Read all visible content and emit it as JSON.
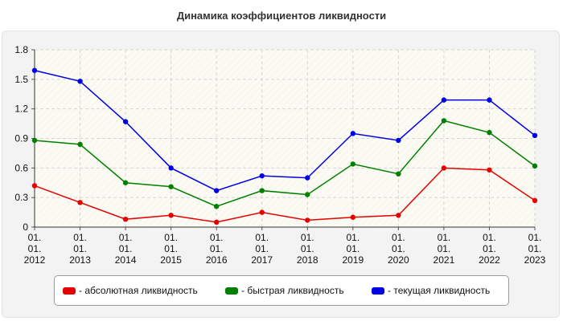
{
  "chart_data": {
    "type": "line",
    "title": "Динамика коэффициентов ликвидности",
    "xlabel": "",
    "ylabel": "",
    "categories": [
      "01.\n01.\n2012",
      "01.\n01.\n2013",
      "01.\n01.\n2014",
      "01.\n01.\n2015",
      "01.\n01.\n2016",
      "01.\n01.\n2017",
      "01.\n01.\n2018",
      "01.\n01.\n2019",
      "01.\n01.\n2020",
      "01.\n01.\n2021",
      "01.\n01.\n2022",
      "01.\n01.\n2023"
    ],
    "ylim": [
      0,
      1.8
    ],
    "yticks": [
      "0",
      "0.3",
      "0.6",
      "0.9",
      "1.2",
      "1.5",
      "1.8"
    ],
    "grid": true,
    "legend_position": "bottom",
    "series": [
      {
        "name": "- абсолютная ликвидность",
        "color": "#e60000",
        "values": [
          0.42,
          0.25,
          0.08,
          0.12,
          0.05,
          0.15,
          0.07,
          0.1,
          0.12,
          0.6,
          0.58,
          0.27
        ]
      },
      {
        "name": "- быстрая ликвидность",
        "color": "#008000",
        "values": [
          0.88,
          0.84,
          0.45,
          0.41,
          0.21,
          0.37,
          0.33,
          0.64,
          0.54,
          1.08,
          0.96,
          0.62
        ]
      },
      {
        "name": "- текущая ликвидность",
        "color": "#0000e6",
        "values": [
          1.59,
          1.48,
          1.07,
          0.6,
          0.37,
          0.52,
          0.5,
          0.95,
          0.88,
          1.29,
          1.29,
          0.93
        ]
      }
    ]
  }
}
